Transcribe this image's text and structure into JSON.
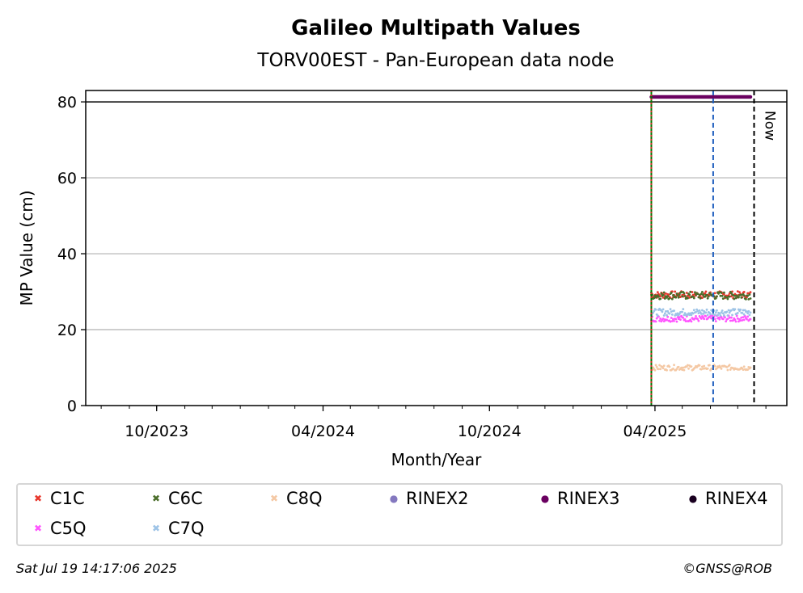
{
  "chart_data": {
    "type": "scatter",
    "title": "Galileo Multipath Values",
    "subtitle": "TORV00EST - Pan-European data node",
    "xlabel": "Month/Year",
    "ylabel": "MP Value (cm)",
    "ylim": [
      0,
      83
    ],
    "xlim": [
      "2023-07-15",
      "2025-08-24"
    ],
    "yticks": [
      0,
      20,
      40,
      60,
      80
    ],
    "xticks": [
      {
        "date": "2023-10-01",
        "label": "10/2023"
      },
      {
        "date": "2024-04-01",
        "label": "04/2024"
      },
      {
        "date": "2024-10-01",
        "label": "10/2024"
      },
      {
        "date": "2025-04-01",
        "label": "04/2025"
      }
    ],
    "grid": "y",
    "reference_line_y": 80,
    "vertical_lines": [
      {
        "date": "2025-03-28",
        "color": "#007a00",
        "style": "solid"
      },
      {
        "date": "2025-03-28",
        "color": "#d62728",
        "style": "dotted"
      },
      {
        "date": "2025-06-04",
        "color": "#1f5fbf",
        "style": "dashed"
      },
      {
        "date": "2025-07-19",
        "color": "#000000",
        "style": "dashed",
        "label": "Now"
      }
    ],
    "series": [
      {
        "name": "C1C",
        "color": "#e8372c",
        "marker": "x",
        "start": "2025-03-28",
        "end": "2025-07-15",
        "mean": 29.2,
        "spread": 0.9
      },
      {
        "name": "C5Q",
        "color": "#ff55ff",
        "marker": "x",
        "start": "2025-03-28",
        "end": "2025-07-15",
        "mean": 22.9,
        "spread": 0.8
      },
      {
        "name": "C6C",
        "color": "#4a6d2a",
        "marker": "x",
        "start": "2025-03-28",
        "end": "2025-07-15",
        "mean": 29.0,
        "spread": 1.0
      },
      {
        "name": "C7Q",
        "color": "#9dc3e6",
        "marker": "x",
        "start": "2025-03-28",
        "end": "2025-07-15",
        "mean": 24.6,
        "spread": 0.9
      },
      {
        "name": "C8Q",
        "color": "#f4c8a4",
        "marker": "x",
        "start": "2025-03-28",
        "end": "2025-07-15",
        "mean": 10.0,
        "spread": 0.7
      },
      {
        "name": "RINEX2",
        "color": "#8478bf",
        "marker": "o"
      },
      {
        "name": "RINEX3",
        "color": "#6a0060",
        "marker": "o",
        "start": "2025-03-28",
        "end": "2025-07-15",
        "value": 81.3
      },
      {
        "name": "RINEX4",
        "color": "#1a0020",
        "marker": "o"
      }
    ]
  },
  "footer": {
    "timestamp": "Sat Jul 19 14:17:06 2025",
    "credit": "©GNSS@ROB"
  }
}
